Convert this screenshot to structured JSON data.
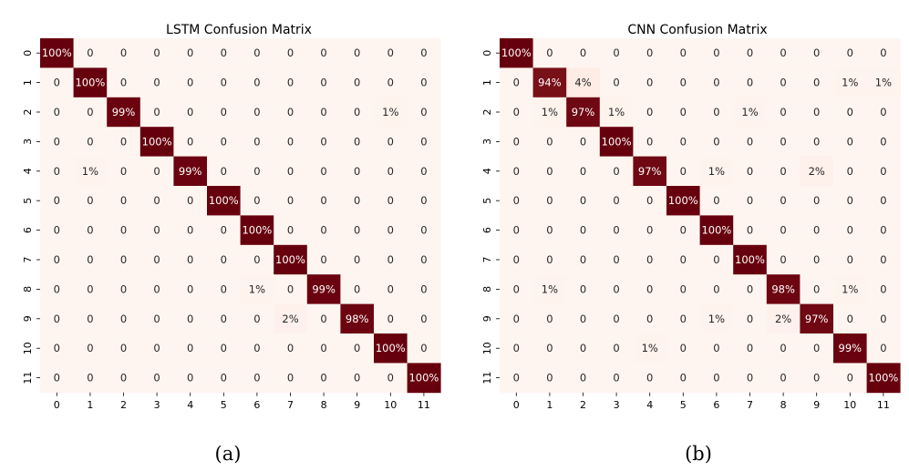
{
  "chart_data": [
    {
      "type": "heatmap",
      "title": "LSTM Confusion Matrix",
      "caption": "(a)",
      "x_ticks": [
        "0",
        "1",
        "2",
        "3",
        "4",
        "5",
        "6",
        "7",
        "8",
        "9",
        "10",
        "11"
      ],
      "y_ticks": [
        "0",
        "1",
        "2",
        "3",
        "4",
        "5",
        "6",
        "7",
        "8",
        "9",
        "10",
        "11"
      ],
      "value_unit": "%",
      "values": [
        [
          100,
          0,
          0,
          0,
          0,
          0,
          0,
          0,
          0,
          0,
          0,
          0
        ],
        [
          0,
          100,
          0,
          0,
          0,
          0,
          0,
          0,
          0,
          0,
          0,
          0
        ],
        [
          0,
          0,
          99,
          0,
          0,
          0,
          0,
          0,
          0,
          0,
          1,
          0
        ],
        [
          0,
          0,
          0,
          100,
          0,
          0,
          0,
          0,
          0,
          0,
          0,
          0
        ],
        [
          0,
          1,
          0,
          0,
          99,
          0,
          0,
          0,
          0,
          0,
          0,
          0
        ],
        [
          0,
          0,
          0,
          0,
          0,
          100,
          0,
          0,
          0,
          0,
          0,
          0
        ],
        [
          0,
          0,
          0,
          0,
          0,
          0,
          100,
          0,
          0,
          0,
          0,
          0
        ],
        [
          0,
          0,
          0,
          0,
          0,
          0,
          0,
          100,
          0,
          0,
          0,
          0
        ],
        [
          0,
          0,
          0,
          0,
          0,
          0,
          1,
          0,
          99,
          0,
          0,
          0
        ],
        [
          0,
          0,
          0,
          0,
          0,
          0,
          0,
          2,
          0,
          98,
          0,
          0
        ],
        [
          0,
          0,
          0,
          0,
          0,
          0,
          0,
          0,
          0,
          0,
          100,
          0
        ],
        [
          0,
          0,
          0,
          0,
          0,
          0,
          0,
          0,
          0,
          0,
          0,
          100
        ]
      ]
    },
    {
      "type": "heatmap",
      "title": "CNN Confusion Matrix",
      "caption": "(b)",
      "x_ticks": [
        "0",
        "1",
        "2",
        "3",
        "4",
        "5",
        "6",
        "7",
        "8",
        "9",
        "10",
        "11"
      ],
      "y_ticks": [
        "0",
        "1",
        "2",
        "3",
        "4",
        "5",
        "6",
        "7",
        "8",
        "9",
        "10",
        "11"
      ],
      "value_unit": "%",
      "values": [
        [
          100,
          0,
          0,
          0,
          0,
          0,
          0,
          0,
          0,
          0,
          0,
          0
        ],
        [
          0,
          94,
          4,
          0,
          0,
          0,
          0,
          0,
          0,
          0,
          1,
          1
        ],
        [
          0,
          1,
          97,
          1,
          0,
          0,
          0,
          1,
          0,
          0,
          0,
          0
        ],
        [
          0,
          0,
          0,
          100,
          0,
          0,
          0,
          0,
          0,
          0,
          0,
          0
        ],
        [
          0,
          0,
          0,
          0,
          97,
          0,
          1,
          0,
          0,
          2,
          0,
          0
        ],
        [
          0,
          0,
          0,
          0,
          0,
          100,
          0,
          0,
          0,
          0,
          0,
          0
        ],
        [
          0,
          0,
          0,
          0,
          0,
          0,
          100,
          0,
          0,
          0,
          0,
          0
        ],
        [
          0,
          0,
          0,
          0,
          0,
          0,
          0,
          100,
          0,
          0,
          0,
          0
        ],
        [
          0,
          1,
          0,
          0,
          0,
          0,
          0,
          0,
          98,
          0,
          1,
          0
        ],
        [
          0,
          0,
          0,
          0,
          0,
          0,
          1,
          0,
          2,
          97,
          0,
          0
        ],
        [
          0,
          0,
          0,
          0,
          1,
          0,
          0,
          0,
          0,
          0,
          99,
          0
        ],
        [
          0,
          0,
          0,
          0,
          0,
          0,
          0,
          0,
          0,
          0,
          0,
          100
        ]
      ]
    }
  ],
  "colors": {
    "low": "#fff5f0",
    "mid": "#f2896b",
    "high": "#67000d",
    "text_dark": "#262626",
    "text_light": "#ffffff"
  }
}
